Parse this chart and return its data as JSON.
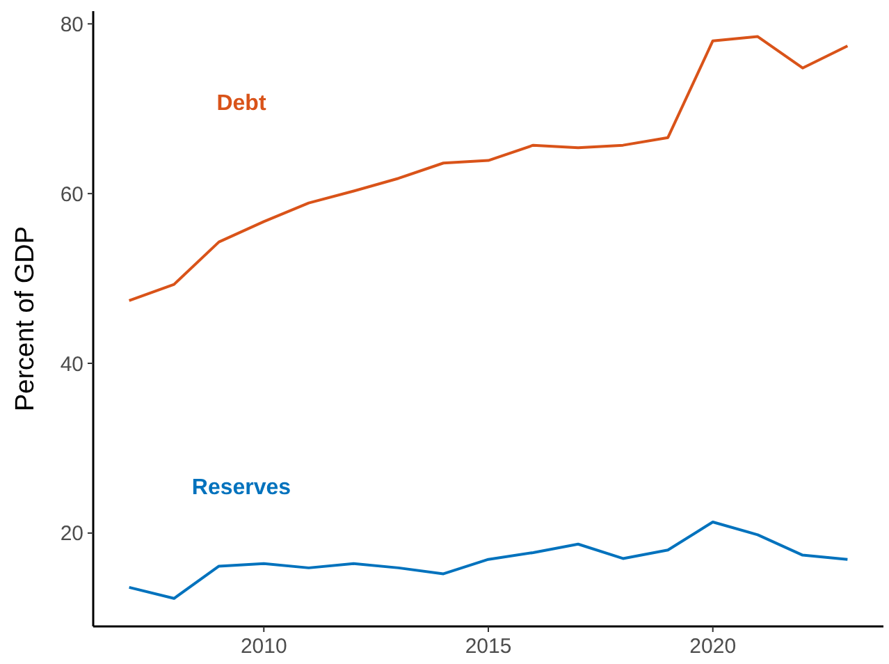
{
  "chart_data": {
    "type": "line",
    "ylabel": "Percent of GDP",
    "x": [
      2007,
      2008,
      2009,
      2010,
      2011,
      2012,
      2013,
      2014,
      2015,
      2016,
      2017,
      2018,
      2019,
      2020,
      2021,
      2022,
      2023
    ],
    "series": [
      {
        "name": "Debt",
        "color": "#d95319",
        "values": [
          47.4,
          49.3,
          54.3,
          56.7,
          58.9,
          60.3,
          61.8,
          63.6,
          63.9,
          65.7,
          65.4,
          65.7,
          66.6,
          78.0,
          78.5,
          74.8,
          77.4
        ]
      },
      {
        "name": "Reserves",
        "color": "#0072bd",
        "values": [
          13.6,
          12.3,
          16.1,
          16.4,
          15.9,
          16.4,
          15.9,
          15.2,
          16.9,
          17.7,
          18.7,
          17.0,
          18.0,
          21.3,
          19.8,
          17.4,
          16.9
        ]
      }
    ],
    "xlim": [
      2006.2,
      2023.8
    ],
    "xticks": [
      2010,
      2015,
      2020
    ],
    "ylim": [
      9,
      81.5
    ],
    "yticks": [
      20,
      40,
      60,
      80
    ],
    "grid": false,
    "legend": false,
    "marker": "none",
    "line_style": "solid"
  }
}
